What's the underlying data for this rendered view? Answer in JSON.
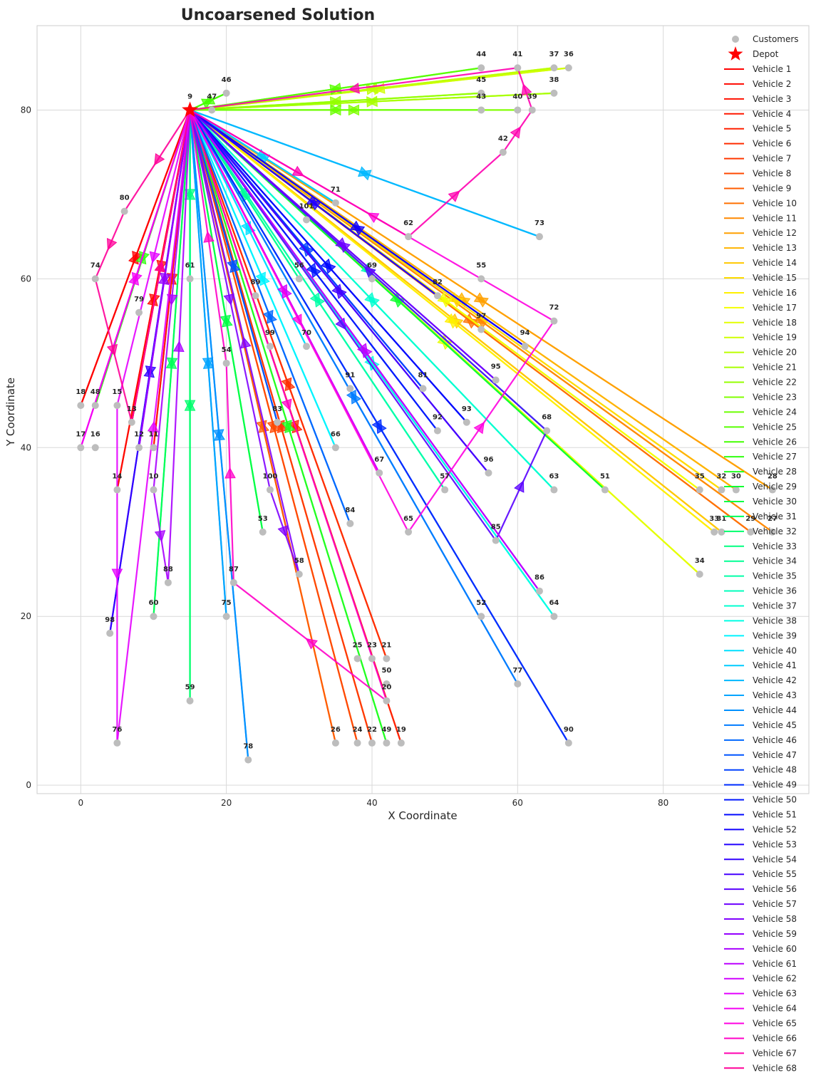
{
  "chart_data": {
    "type": "scatter",
    "title": "Uncoarsened Solution",
    "xlabel": "X Coordinate",
    "ylabel": "Y Coordinate",
    "xlim": [
      -6,
      100
    ],
    "ylim": [
      -1,
      90
    ],
    "xticks": [
      0,
      20,
      40,
      60,
      80
    ],
    "yticks": [
      0,
      20,
      40,
      60,
      80
    ],
    "grid": true,
    "legend_position": "right",
    "customers_label": "Customers",
    "depot_label": "Depot",
    "customer_color": "#bdbdbd",
    "depot_color": "#ff0000",
    "depot": {
      "id": "9",
      "x": 15,
      "y": 80
    },
    "customers": [
      {
        "id": "44",
        "x": 55,
        "y": 85
      },
      {
        "id": "41",
        "x": 60,
        "y": 85
      },
      {
        "id": "37",
        "x": 65,
        "y": 85
      },
      {
        "id": "36",
        "x": 67,
        "y": 85
      },
      {
        "id": "46",
        "x": 20,
        "y": 82
      },
      {
        "id": "47",
        "x": 18,
        "y": 80
      },
      {
        "id": "45",
        "x": 55,
        "y": 82
      },
      {
        "id": "43",
        "x": 55,
        "y": 80
      },
      {
        "id": "40",
        "x": 60,
        "y": 80
      },
      {
        "id": "39",
        "x": 62,
        "y": 80
      },
      {
        "id": "38",
        "x": 65,
        "y": 82
      },
      {
        "id": "42",
        "x": 58,
        "y": 75
      },
      {
        "id": "71",
        "x": 35,
        "y": 69
      },
      {
        "id": "101",
        "x": 31,
        "y": 67
      },
      {
        "id": "62",
        "x": 45,
        "y": 65
      },
      {
        "id": "73",
        "x": 63,
        "y": 65
      },
      {
        "id": "80",
        "x": 6,
        "y": 68
      },
      {
        "id": "74",
        "x": 2,
        "y": 60
      },
      {
        "id": "61",
        "x": 15,
        "y": 60
      },
      {
        "id": "56",
        "x": 30,
        "y": 60
      },
      {
        "id": "69",
        "x": 40,
        "y": 60
      },
      {
        "id": "55",
        "x": 55,
        "y": 60
      },
      {
        "id": "82",
        "x": 49,
        "y": 58
      },
      {
        "id": "89",
        "x": 24,
        "y": 58
      },
      {
        "id": "72",
        "x": 65,
        "y": 55
      },
      {
        "id": "79",
        "x": 8,
        "y": 56
      },
      {
        "id": "97",
        "x": 55,
        "y": 54
      },
      {
        "id": "99",
        "x": 26,
        "y": 52
      },
      {
        "id": "70",
        "x": 31,
        "y": 52
      },
      {
        "id": "94",
        "x": 61,
        "y": 52
      },
      {
        "id": "54",
        "x": 20,
        "y": 50
      },
      {
        "id": "95",
        "x": 57,
        "y": 48
      },
      {
        "id": "91",
        "x": 37,
        "y": 47
      },
      {
        "id": "81",
        "x": 47,
        "y": 47
      },
      {
        "id": "18",
        "x": 0,
        "y": 45
      },
      {
        "id": "48",
        "x": 2,
        "y": 45
      },
      {
        "id": "15",
        "x": 5,
        "y": 45
      },
      {
        "id": "13",
        "x": 7,
        "y": 43
      },
      {
        "id": "83",
        "x": 27,
        "y": 43
      },
      {
        "id": "92",
        "x": 49,
        "y": 42
      },
      {
        "id": "93",
        "x": 53,
        "y": 43
      },
      {
        "id": "68",
        "x": 64,
        "y": 42
      },
      {
        "id": "17",
        "x": 0,
        "y": 40
      },
      {
        "id": "16",
        "x": 2,
        "y": 40
      },
      {
        "id": "12",
        "x": 8,
        "y": 40
      },
      {
        "id": "11",
        "x": 10,
        "y": 40
      },
      {
        "id": "66",
        "x": 35,
        "y": 40
      },
      {
        "id": "67",
        "x": 41,
        "y": 37
      },
      {
        "id": "96",
        "x": 56,
        "y": 37
      },
      {
        "id": "14",
        "x": 5,
        "y": 35
      },
      {
        "id": "10",
        "x": 10,
        "y": 35
      },
      {
        "id": "100",
        "x": 26,
        "y": 35
      },
      {
        "id": "57",
        "x": 50,
        "y": 35
      },
      {
        "id": "63",
        "x": 65,
        "y": 35
      },
      {
        "id": "51",
        "x": 72,
        "y": 35
      },
      {
        "id": "35",
        "x": 85,
        "y": 35
      },
      {
        "id": "32",
        "x": 88,
        "y": 35
      },
      {
        "id": "30",
        "x": 90,
        "y": 35
      },
      {
        "id": "28",
        "x": 95,
        "y": 35
      },
      {
        "id": "53",
        "x": 25,
        "y": 30
      },
      {
        "id": "84",
        "x": 37,
        "y": 31
      },
      {
        "id": "65",
        "x": 45,
        "y": 30
      },
      {
        "id": "85",
        "x": 57,
        "y": 29
      },
      {
        "id": "33",
        "x": 87,
        "y": 30
      },
      {
        "id": "31",
        "x": 88,
        "y": 30
      },
      {
        "id": "29",
        "x": 92,
        "y": 30
      },
      {
        "id": "27",
        "x": 95,
        "y": 30
      },
      {
        "id": "88",
        "x": 12,
        "y": 24
      },
      {
        "id": "87",
        "x": 21,
        "y": 24
      },
      {
        "id": "58",
        "x": 30,
        "y": 25
      },
      {
        "id": "86",
        "x": 63,
        "y": 23
      },
      {
        "id": "34",
        "x": 85,
        "y": 25
      },
      {
        "id": "98",
        "x": 4,
        "y": 18
      },
      {
        "id": "60",
        "x": 10,
        "y": 20
      },
      {
        "id": "75",
        "x": 20,
        "y": 20
      },
      {
        "id": "52",
        "x": 55,
        "y": 20
      },
      {
        "id": "64",
        "x": 65,
        "y": 20
      },
      {
        "id": "25",
        "x": 38,
        "y": 15
      },
      {
        "id": "23",
        "x": 40,
        "y": 15
      },
      {
        "id": "21",
        "x": 42,
        "y": 15
      },
      {
        "id": "50",
        "x": 42,
        "y": 12
      },
      {
        "id": "20",
        "x": 42,
        "y": 10
      },
      {
        "id": "77",
        "x": 60,
        "y": 12
      },
      {
        "id": "59",
        "x": 15,
        "y": 10
      },
      {
        "id": "76",
        "x": 5,
        "y": 5
      },
      {
        "id": "26",
        "x": 35,
        "y": 5
      },
      {
        "id": "24",
        "x": 38,
        "y": 5
      },
      {
        "id": "22",
        "x": 40,
        "y": 5
      },
      {
        "id": "49",
        "x": 42,
        "y": 5
      },
      {
        "id": "19",
        "x": 44,
        "y": 5
      },
      {
        "id": "90",
        "x": 67,
        "y": 5
      },
      {
        "id": "78",
        "x": 23,
        "y": 3
      }
    ],
    "series": [
      {
        "name": "Vehicle 1",
        "color": "#ff0000",
        "route": [
          "9",
          "18",
          "9"
        ]
      },
      {
        "name": "Vehicle 2",
        "color": "#ff0800",
        "route": [
          "9",
          "14",
          "9"
        ]
      },
      {
        "name": "Vehicle 3",
        "color": "#ff1000",
        "route": [
          "9",
          "13",
          "9"
        ]
      },
      {
        "name": "Vehicle 4",
        "color": "#ff1800",
        "route": [
          "9",
          "11",
          "9"
        ]
      },
      {
        "name": "Vehicle 5",
        "color": "#ff2000",
        "route": [
          "9",
          "19",
          "9"
        ]
      },
      {
        "name": "Vehicle 6",
        "color": "#ff2c00",
        "route": [
          "9",
          "21",
          "9"
        ]
      },
      {
        "name": "Vehicle 7",
        "color": "#ff3800",
        "route": [
          "9",
          "22",
          "9"
        ]
      },
      {
        "name": "Vehicle 8",
        "color": "#ff4800",
        "route": [
          "9",
          "24",
          "9"
        ]
      },
      {
        "name": "Vehicle 9",
        "color": "#ff5c00",
        "route": [
          "9",
          "26",
          "9"
        ]
      },
      {
        "name": "Vehicle 10",
        "color": "#ff7000",
        "route": [
          "9",
          "29",
          "9"
        ]
      },
      {
        "name": "Vehicle 11",
        "color": "#ff8800",
        "route": [
          "9",
          "27",
          "9"
        ]
      },
      {
        "name": "Vehicle 12",
        "color": "#ffa000",
        "route": [
          "9",
          "28",
          "9"
        ]
      },
      {
        "name": "Vehicle 13",
        "color": "#ffb400",
        "route": [
          "9",
          "30",
          "9"
        ]
      },
      {
        "name": "Vehicle 14",
        "color": "#ffc800",
        "route": [
          "9",
          "31",
          "9"
        ]
      },
      {
        "name": "Vehicle 15",
        "color": "#ffdc00",
        "route": [
          "9",
          "32",
          "9"
        ]
      },
      {
        "name": "Vehicle 16",
        "color": "#fff000",
        "route": [
          "9",
          "33",
          "9"
        ]
      },
      {
        "name": "Vehicle 17",
        "color": "#f4ff00",
        "route": [
          "9",
          "35",
          "9"
        ]
      },
      {
        "name": "Vehicle 18",
        "color": "#e4ff00",
        "route": [
          "9",
          "34",
          "9"
        ]
      },
      {
        "name": "Vehicle 19",
        "color": "#d0ff00",
        "route": [
          "9",
          "36",
          "9"
        ]
      },
      {
        "name": "Vehicle 20",
        "color": "#bcff00",
        "route": [
          "9",
          "37",
          "9"
        ]
      },
      {
        "name": "Vehicle 21",
        "color": "#a8ff00",
        "route": [
          "9",
          "38",
          "9"
        ]
      },
      {
        "name": "Vehicle 22",
        "color": "#94ff00",
        "route": [
          "9",
          "45",
          "9"
        ]
      },
      {
        "name": "Vehicle 23",
        "color": "#80ff00",
        "route": [
          "9",
          "40",
          "9"
        ]
      },
      {
        "name": "Vehicle 24",
        "color": "#6cff00",
        "route": [
          "9",
          "43",
          "9"
        ]
      },
      {
        "name": "Vehicle 25",
        "color": "#58ff00",
        "route": [
          "9",
          "44",
          "9"
        ]
      },
      {
        "name": "Vehicle 26",
        "color": "#44ff00",
        "route": [
          "9",
          "46",
          "9"
        ]
      },
      {
        "name": "Vehicle 27",
        "color": "#30ff10",
        "route": [
          "9",
          "48",
          "9"
        ]
      },
      {
        "name": "Vehicle 28",
        "color": "#20ff20",
        "route": [
          "9",
          "49",
          "9"
        ]
      },
      {
        "name": "Vehicle 29",
        "color": "#10ff30",
        "route": [
          "9",
          "51",
          "9"
        ]
      },
      {
        "name": "Vehicle 30",
        "color": "#00ff44",
        "route": [
          "9",
          "53",
          "9"
        ]
      },
      {
        "name": "Vehicle 31",
        "color": "#00ff58",
        "route": [
          "9",
          "60",
          "9"
        ]
      },
      {
        "name": "Vehicle 32",
        "color": "#00ff6c",
        "route": [
          "9",
          "59",
          "9"
        ]
      },
      {
        "name": "Vehicle 33",
        "color": "#00ff80",
        "route": [
          "9",
          "61",
          "9"
        ]
      },
      {
        "name": "Vehicle 34",
        "color": "#00ff94",
        "route": [
          "9",
          "56",
          "9"
        ]
      },
      {
        "name": "Vehicle 35",
        "color": "#00ffa8",
        "route": [
          "9",
          "57",
          "9"
        ]
      },
      {
        "name": "Vehicle 36",
        "color": "#00ffbc",
        "route": [
          "9",
          "68",
          "9"
        ]
      },
      {
        "name": "Vehicle 37",
        "color": "#00ffd0",
        "route": [
          "9",
          "63",
          "9"
        ]
      },
      {
        "name": "Vehicle 38",
        "color": "#00ffe4",
        "route": [
          "9",
          "64",
          "9"
        ]
      },
      {
        "name": "Vehicle 39",
        "color": "#00f4ff",
        "route": [
          "9",
          "66",
          "9"
        ]
      },
      {
        "name": "Vehicle 40",
        "color": "#00e0ff",
        "route": [
          "9",
          "70",
          "9"
        ]
      },
      {
        "name": "Vehicle 41",
        "color": "#00ccff",
        "route": [
          "9",
          "71",
          "9"
        ]
      },
      {
        "name": "Vehicle 42",
        "color": "#00b8ff",
        "route": [
          "9",
          "73",
          "9"
        ]
      },
      {
        "name": "Vehicle 43",
        "color": "#00a4ff",
        "route": [
          "9",
          "75",
          "9"
        ]
      },
      {
        "name": "Vehicle 44",
        "color": "#0090ff",
        "route": [
          "9",
          "78",
          "9"
        ]
      },
      {
        "name": "Vehicle 45",
        "color": "#007cff",
        "route": [
          "9",
          "77",
          "9"
        ]
      },
      {
        "name": "Vehicle 46",
        "color": "#0068ff",
        "route": [
          "9",
          "84",
          "9"
        ]
      },
      {
        "name": "Vehicle 47",
        "color": "#0054ff",
        "route": [
          "9",
          "83",
          "9"
        ]
      },
      {
        "name": "Vehicle 48",
        "color": "#0040ff",
        "route": [
          "9",
          "81",
          "9"
        ]
      },
      {
        "name": "Vehicle 49",
        "color": "#002cff",
        "route": [
          "9",
          "90",
          "9"
        ]
      },
      {
        "name": "Vehicle 50",
        "color": "#0018ff",
        "route": [
          "9",
          "92",
          "9"
        ]
      },
      {
        "name": "Vehicle 51",
        "color": "#0008ff",
        "route": [
          "9",
          "93",
          "9"
        ]
      },
      {
        "name": "Vehicle 52",
        "color": "#1000ff",
        "route": [
          "9",
          "94",
          "9"
        ]
      },
      {
        "name": "Vehicle 53",
        "color": "#2000ff",
        "route": [
          "9",
          "82",
          "9"
        ]
      },
      {
        "name": "Vehicle 54",
        "color": "#3000ff",
        "route": [
          "9",
          "98",
          "9"
        ]
      },
      {
        "name": "Vehicle 55",
        "color": "#4400ff",
        "route": [
          "9",
          "96",
          "9"
        ]
      },
      {
        "name": "Vehicle 56",
        "color": "#5800ff",
        "route": [
          "9",
          "85",
          "68",
          "9"
        ]
      },
      {
        "name": "Vehicle 57",
        "color": "#6c00ff",
        "route": [
          "9",
          "95",
          "9"
        ]
      },
      {
        "name": "Vehicle 58",
        "color": "#8000ff",
        "route": [
          "9",
          "100",
          "58",
          "9"
        ]
      },
      {
        "name": "Vehicle 59",
        "color": "#9400ff",
        "route": [
          "9",
          "12",
          "9"
        ]
      },
      {
        "name": "Vehicle 60",
        "color": "#a800ff",
        "route": [
          "9",
          "10",
          "88",
          "9"
        ]
      },
      {
        "name": "Vehicle 61",
        "color": "#bc00ff",
        "route": [
          "9",
          "86",
          "9"
        ]
      },
      {
        "name": "Vehicle 62",
        "color": "#d000ff",
        "route": [
          "9",
          "67",
          "9"
        ]
      },
      {
        "name": "Vehicle 63",
        "color": "#e400ff",
        "route": [
          "9",
          "15",
          "76",
          "9"
        ]
      },
      {
        "name": "Vehicle 64",
        "color": "#f400f4",
        "route": [
          "9",
          "17",
          "9"
        ]
      },
      {
        "name": "Vehicle 65",
        "color": "#ff00e0",
        "route": [
          "9",
          "65",
          "72",
          "9"
        ]
      },
      {
        "name": "Vehicle 66",
        "color": "#ff00c8",
        "route": [
          "9",
          "20",
          "87",
          "54",
          "9"
        ]
      },
      {
        "name": "Vehicle 67",
        "color": "#ff00b0",
        "route": [
          "9",
          "62",
          "42",
          "39",
          "41",
          "9"
        ]
      },
      {
        "name": "Vehicle 68",
        "color": "#ff0098",
        "route": [
          "9",
          "80",
          "74",
          "13",
          "9"
        ]
      }
    ]
  }
}
